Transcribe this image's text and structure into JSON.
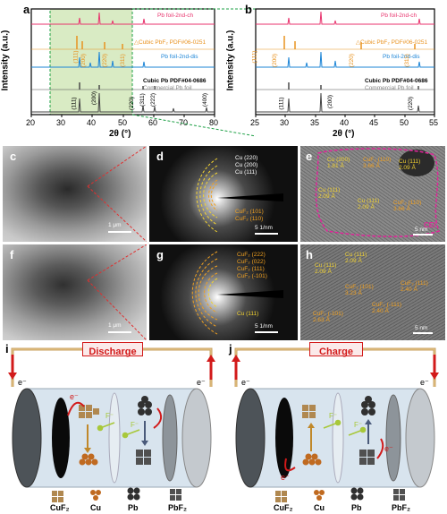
{
  "panels": {
    "a": "a",
    "b": "b",
    "c": "c",
    "d": "d",
    "e": "e",
    "f": "f",
    "g": "g",
    "h": "h",
    "i": "i",
    "j": "j"
  },
  "xrd": {
    "ylabel": "Intensity (a.u.)",
    "xlabel": "2θ (°)",
    "a": {
      "xticks": [
        "20",
        "30",
        "40",
        "50",
        "60",
        "70",
        "80"
      ],
      "series": {
        "charge": "Pb foil-2nd-ch",
        "cubicPbF2": "△Cubic PbF₂ PDF#06-0251",
        "discharge": "Pb foil-2nd-dis",
        "cubicPb": "Cubic Pb PDF#04-0686",
        "commercial": "Commercial Pb foil"
      },
      "pbf2_peaks": [
        "(111)",
        "(200)",
        "(220)",
        "(311)"
      ],
      "pb_peaks": [
        "(111)",
        "(200)",
        "(220)",
        "(311)",
        "(222)",
        "(400)"
      ]
    },
    "b": {
      "xticks": [
        "25",
        "30",
        "35",
        "40",
        "45",
        "50",
        "55"
      ],
      "series": {
        "charge": "Pb foil-2nd-ch",
        "cubicPbF2": "△Cubic PbF₂ PDF#06-0251",
        "discharge": "Pb foil-2nd-dis",
        "cubicPb": "Cubic Pb PDF#04-0686",
        "commercial": "Commercial Pb foil"
      },
      "pbf2_peaks": [
        "(111)",
        "(200)",
        "(220)",
        "(311)"
      ],
      "pb_peaks": [
        "(111)",
        "(200)",
        "(220)"
      ]
    }
  },
  "tem": {
    "c_scale": "1 μm",
    "f_scale": "1 μm",
    "d_scale": "5 1/nm",
    "g_scale": "5 1/nm",
    "e_scale": "5 nm",
    "h_scale": "5 nm",
    "d_rings": [
      "Cu (220)",
      "Cu (200)",
      "Cu (111)",
      "CuF₂ (101)",
      "CuF₂ (110)"
    ],
    "g_rings": [
      "CuF₂ (222)",
      "CuF₂ (022)",
      "CuF₂ (111)",
      "CuF₂ (-101)",
      "Cu (111)"
    ],
    "e_labels": [
      "Cu (200) 1.81 Å",
      "Cu (111) 2.09 Å",
      "CuF₂ (110) 3.66 Å",
      "Cu (111) 2.09 Å",
      "Cu (111) 2.09 Å",
      "CuF₂ (110) 3.66 Å"
    ],
    "e_cei": "CEI",
    "h_labels": [
      "Cu (111) 2.09 Å",
      "Cu (111) 2.09 Å",
      "CuF₂ (101) 3.23 Å",
      "CuF₂ (-101) 2.63 Å",
      "CuF₂ (111) 2.40 Å",
      "CuF₂ (-111) 2.40 Å"
    ]
  },
  "schematic": {
    "discharge": "Discharge",
    "charge": "Charge",
    "electron": "e⁻",
    "fluoride": "F⁻",
    "legend": [
      "CuF₂",
      "Cu",
      "Pb",
      "PbF₂"
    ]
  },
  "colors": {
    "charge": "#e8336d",
    "pbf2": "#e8921f",
    "discharge": "#1b84d6",
    "pb": "#4a4a4a",
    "highlight": "#d9ebc4",
    "dashed": "#1ea046",
    "ring": "#f0a020",
    "cei": "#e0269a",
    "red": "#d21a1a"
  }
}
